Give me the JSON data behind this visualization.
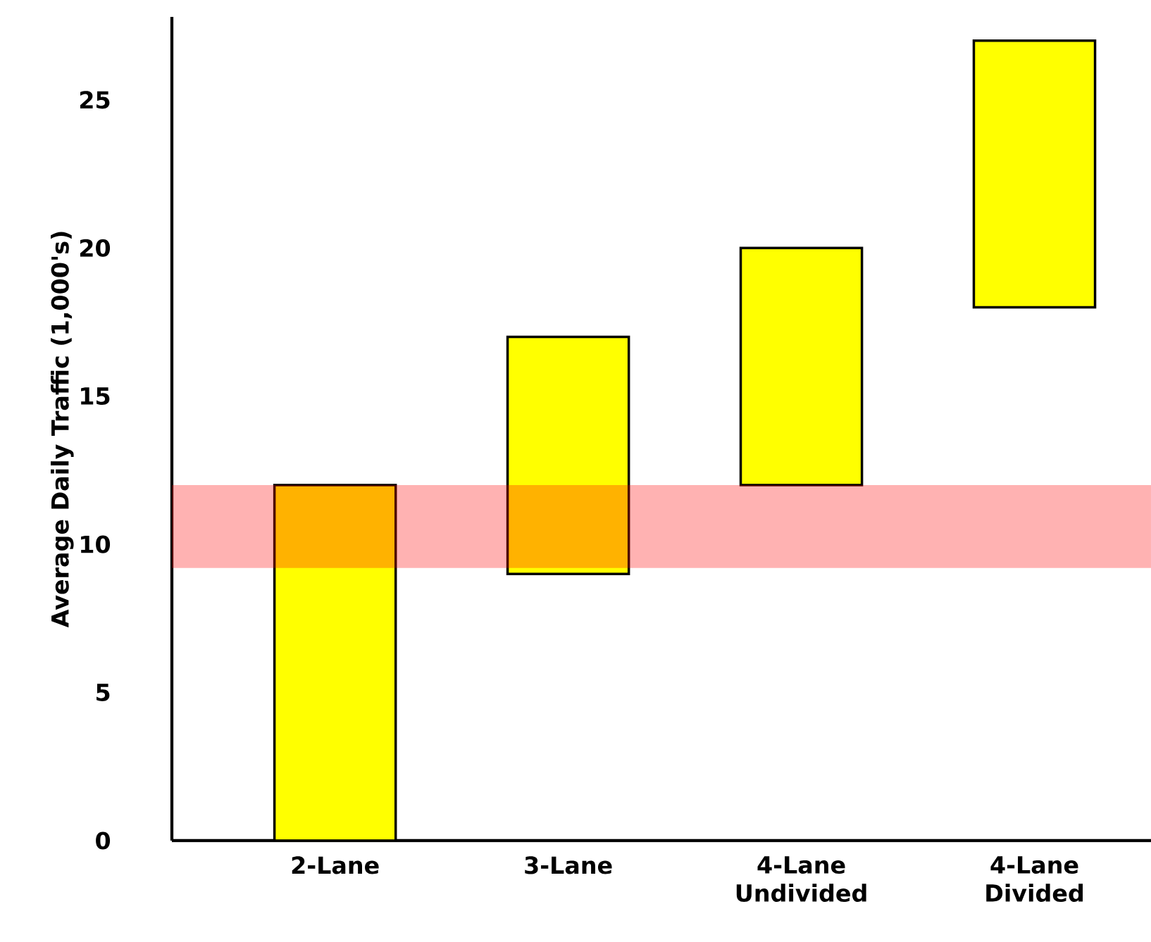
{
  "chart_data": {
    "type": "bar",
    "ylabel": "Average Daily Traffic (1,000's)",
    "categories": [
      "2-Lane",
      "3-Lane",
      "4-Lane Undivided",
      "4-Lane Divided"
    ],
    "base": [
      0,
      9,
      12,
      18
    ],
    "values": [
      12,
      8,
      8,
      9
    ],
    "color": "#ffff00",
    "ylim": [
      0,
      27.8
    ],
    "yticks": [
      0,
      5,
      10,
      15,
      20,
      25
    ],
    "bands": [
      {
        "axis": "y",
        "from": 9.2,
        "to": 12,
        "label": null,
        "color": "#ff0000"
      }
    ],
    "grid": false
  }
}
